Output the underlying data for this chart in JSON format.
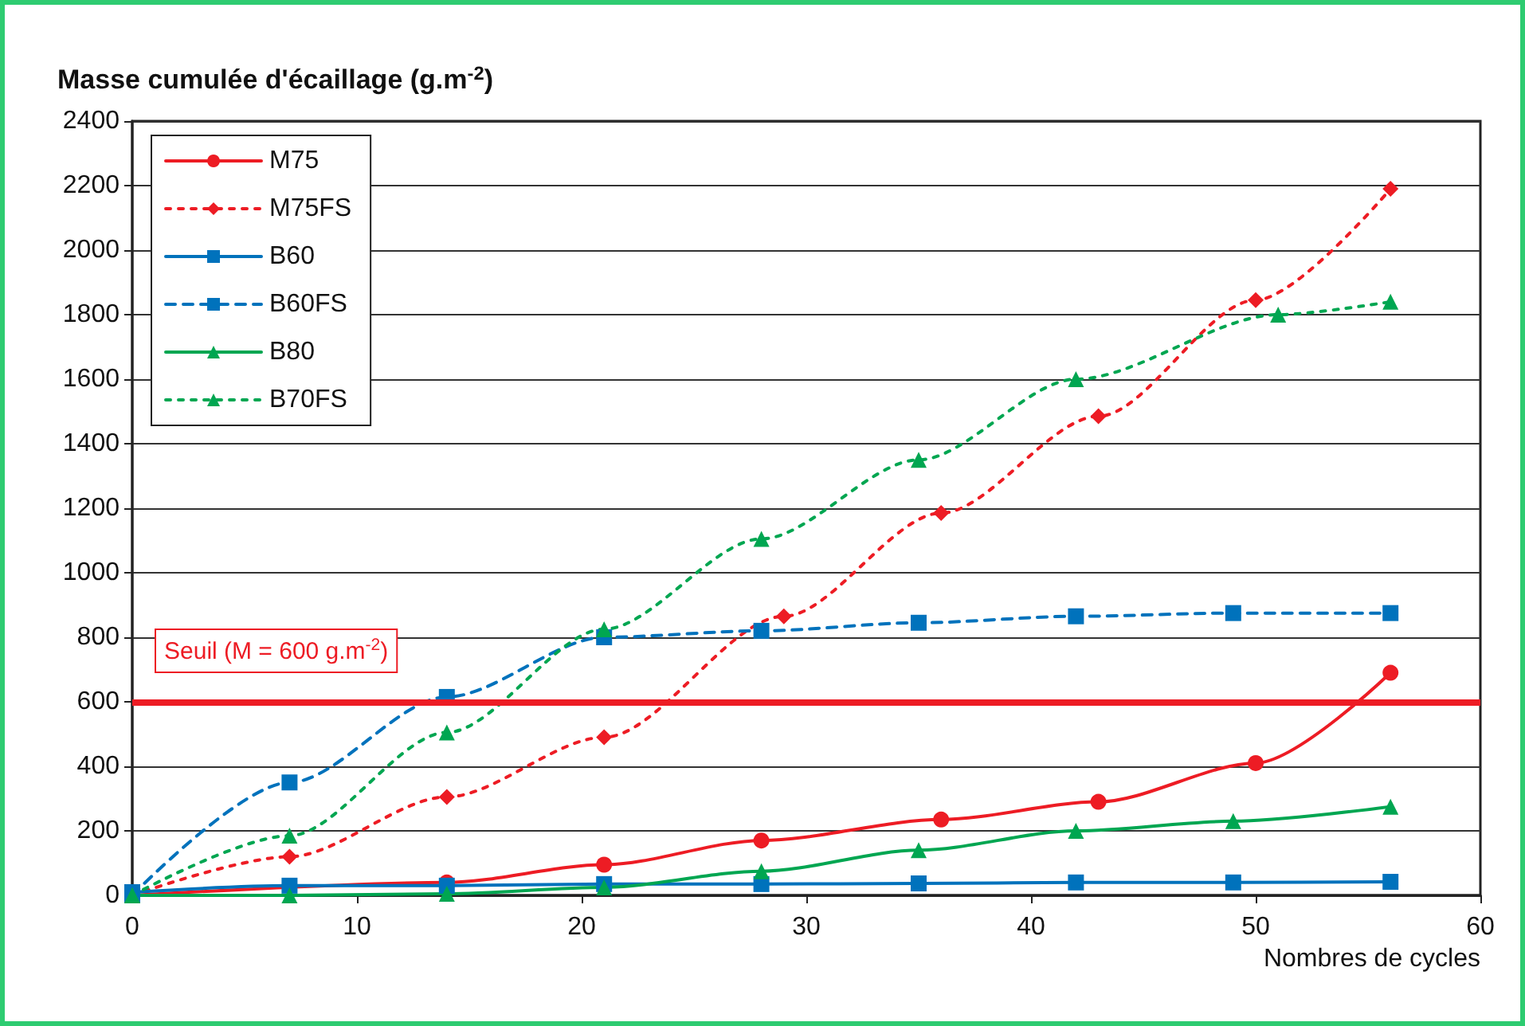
{
  "chart_data": {
    "type": "line",
    "ylabel": "Masse cumulée d'écaillage (g.m$^{-2}$)",
    "xlabel": "Nombres de cycles",
    "xlim": [
      0,
      60
    ],
    "xticks": [
      0,
      10,
      20,
      30,
      40,
      50,
      60
    ],
    "ylim": [
      0,
      2400
    ],
    "yticks": [
      0,
      200,
      400,
      600,
      800,
      1000,
      1200,
      1400,
      1600,
      1800,
      2000,
      2200,
      2400
    ],
    "grid": "y",
    "legend": "top left",
    "series": [
      {
        "name": "M75",
        "color": "#ed1c24",
        "marker": "circle",
        "line_style": "solid",
        "x": [
          0,
          14,
          21,
          28,
          36,
          43,
          50,
          56
        ],
        "values": [
          0,
          40,
          95,
          170,
          235,
          290,
          410,
          690
        ]
      },
      {
        "name": "M75FS",
        "color": "#ed1c24",
        "marker": "diamond",
        "line_style": "dotted",
        "x": [
          0,
          7,
          14,
          21,
          29,
          36,
          43,
          50,
          56
        ],
        "values": [
          0,
          120,
          305,
          490,
          865,
          1185,
          1485,
          1845,
          2190
        ]
      },
      {
        "name": "B60",
        "color": "#0072bc",
        "marker": "square",
        "line_style": "solid",
        "x": [
          0,
          7,
          14,
          21,
          28,
          35,
          42,
          49,
          56
        ],
        "values": [
          10,
          30,
          30,
          35,
          35,
          37,
          40,
          40,
          42
        ]
      },
      {
        "name": "B60FS",
        "color": "#0072bc",
        "marker": "square",
        "line_style": "dashed",
        "x": [
          0,
          7,
          14,
          21,
          28,
          35,
          42,
          49,
          56
        ],
        "values": [
          0,
          350,
          615,
          800,
          820,
          845,
          865,
          875,
          875
        ]
      },
      {
        "name": "B80",
        "color": "#00a651",
        "marker": "triangle",
        "line_style": "solid",
        "x": [
          0,
          7,
          14,
          21,
          28,
          35,
          42,
          49,
          56
        ],
        "values": [
          0,
          0,
          5,
          25,
          75,
          140,
          200,
          230,
          275
        ]
      },
      {
        "name": "B70FS",
        "color": "#00a651",
        "marker": "triangle",
        "line_style": "dotted",
        "x": [
          0,
          7,
          14,
          21,
          28,
          35,
          42,
          51,
          56
        ],
        "values": [
          0,
          185,
          505,
          825,
          1105,
          1350,
          1600,
          1800,
          1840
        ]
      }
    ],
    "ref_lines": [
      {
        "axis": "y",
        "value": 600,
        "label": "Seuil (M = 600 g.m$^{-2}$)",
        "color": "#ed1c24",
        "line_style": "solid"
      }
    ]
  }
}
